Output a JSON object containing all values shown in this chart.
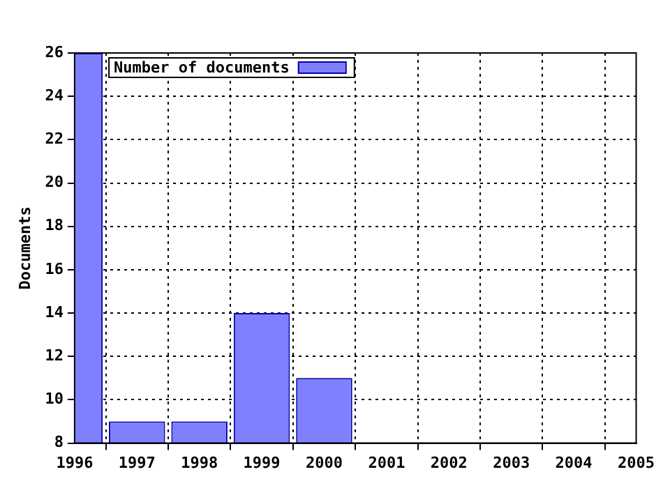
{
  "chart_data": {
    "type": "bar",
    "ylabel": "Documents",
    "x": [
      1996,
      1997,
      1998,
      1999,
      2000
    ],
    "series": [
      {
        "name": "Number of documents",
        "color": "#8080ff",
        "values": [
          26,
          9,
          9,
          14,
          11
        ]
      }
    ],
    "xlim": [
      1996,
      2005
    ],
    "xticks": [
      1996,
      1997,
      1998,
      1999,
      2000,
      2001,
      2002,
      2003,
      2004,
      2005
    ],
    "ylim": [
      8,
      26
    ],
    "yticks": [
      8,
      10,
      12,
      14,
      16,
      18,
      20,
      22,
      24,
      26
    ],
    "grid": true,
    "legend": "top left"
  }
}
